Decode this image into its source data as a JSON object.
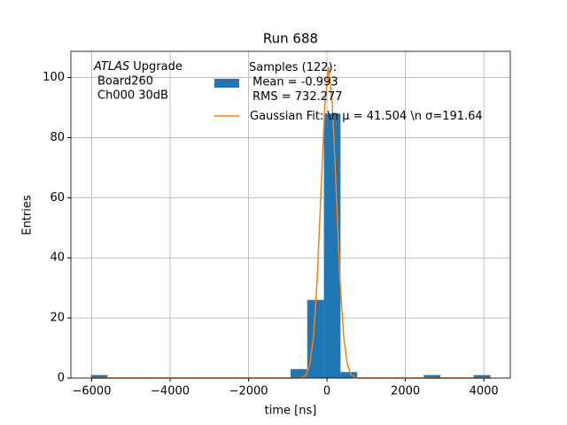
{
  "chart_data": {
    "type": "histogram",
    "title": "Run 688",
    "xlabel": "time [ns]",
    "ylabel": "Entries",
    "annotation": [
      "ATLAS",
      "Upgrade",
      "Board260",
      "Ch000 30dB"
    ],
    "bins": [
      -6022,
      -5597.5,
      -5173,
      -4748.5,
      -4324,
      -3899.5,
      -3475,
      -3050.5,
      -2626,
      -2201.5,
      -1777,
      -1352.5,
      -928,
      -503.5,
      -79,
      345.5,
      770,
      1194.5,
      1619,
      2043.5,
      2468,
      2892.5,
      3317,
      3741.5,
      4166
    ],
    "series": [
      {
        "name": "Samples (122):\n Mean = -0.993\n RMS = 732.277",
        "color": "#1f77b4",
        "values": [
          1,
          0,
          0,
          0,
          0,
          0,
          0,
          0,
          0,
          0,
          0,
          0,
          3,
          26,
          88,
          2,
          0,
          0,
          0,
          0,
          1,
          0,
          0,
          1
        ]
      },
      {
        "name": "Gaussian Fit: \\n μ = 41.504 \\n σ=191.64",
        "color": "#ff7f0e",
        "type": "line",
        "x": [
          -6000,
          -725,
          -629,
          -533,
          -437,
          -342,
          -246,
          -150,
          -54,
          41.5,
          137,
          233,
          329,
          425,
          521,
          616,
          712,
          808,
          4200
        ],
        "values": [
          0,
          0,
          0.2,
          1.1,
          4.5,
          14.0,
          33.6,
          62.8,
          91.3,
          103.5,
          91.3,
          62.8,
          33.6,
          14.0,
          4.5,
          1.1,
          0.2,
          0,
          0
        ]
      }
    ],
    "xlim": [
      -6531,
      4675
    ],
    "ylim": [
      0,
      108.7
    ],
    "xticks": [
      {
        "value": -6000,
        "label": "−6000"
      },
      {
        "value": -4000,
        "label": "−4000"
      },
      {
        "value": -2000,
        "label": "−2000"
      },
      0,
      2000,
      4000
    ],
    "yticks": [
      0,
      20,
      40,
      60,
      80,
      100
    ],
    "grid": true,
    "legend": "upper right"
  }
}
